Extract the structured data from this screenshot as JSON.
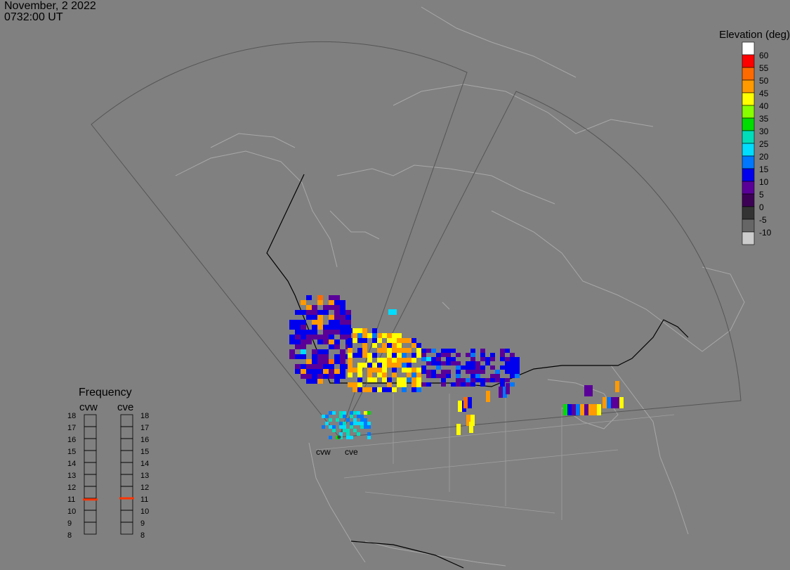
{
  "header": {
    "date": "November, 2 2022",
    "time": "0732:00 UT"
  },
  "legend": {
    "title": "Elevation (deg)",
    "entries": [
      {
        "label": "60",
        "color": "#ffffff"
      },
      {
        "label": "55",
        "color": "#ff0000"
      },
      {
        "label": "50",
        "color": "#ff6a00"
      },
      {
        "label": "45",
        "color": "#ff9a00"
      },
      {
        "label": "40",
        "color": "#ffff00"
      },
      {
        "label": "35",
        "color": "#88ff00"
      },
      {
        "label": "30",
        "color": "#00dd00"
      },
      {
        "label": "25",
        "color": "#00ddbb"
      },
      {
        "label": "20",
        "color": "#00ddff"
      },
      {
        "label": "15",
        "color": "#0077ff"
      },
      {
        "label": "10",
        "color": "#0000ee"
      },
      {
        "label": "5",
        "color": "#5a0099"
      },
      {
        "label": "0",
        "color": "#3c0055"
      },
      {
        "label": "-5",
        "color": "#333333"
      },
      {
        "label": "-10",
        "color": "#666666"
      },
      {
        "label": "",
        "color": "#cccccc"
      }
    ]
  },
  "frequency": {
    "title": "Frequency",
    "radars": [
      {
        "name": "cvw",
        "value": 10.9
      },
      {
        "name": "cve",
        "value": 11.0
      }
    ],
    "ticks": [
      "18",
      "17",
      "16",
      "15",
      "14",
      "13",
      "12",
      "11",
      "10",
      "9",
      "8"
    ],
    "marker_color": "#ff3300"
  },
  "sites": [
    {
      "name": "cvw"
    },
    {
      "name": "cve"
    }
  ]
}
